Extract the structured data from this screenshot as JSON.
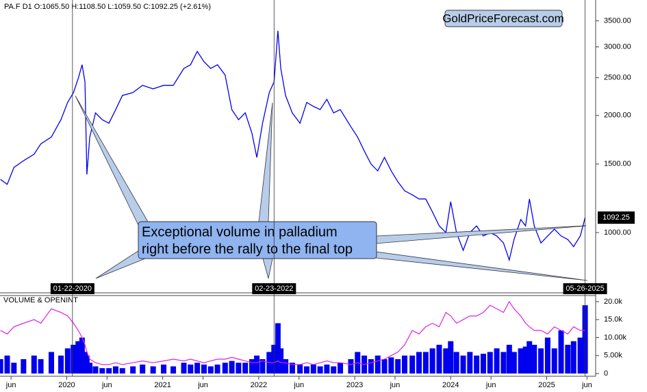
{
  "chart_data": [
    {
      "type": "line",
      "header": "PA.F  D1  O:1065.50  H:1108.50  L:1059.50  C:1092.25  (+2.61%)",
      "watermark": "GoldPriceForecast.com",
      "annotation": [
        "Exceptional volume in palladium",
        "right before the rally to the final top"
      ],
      "log_scale": true,
      "xlim": [
        2019.305,
        2025.51
      ],
      "ylim": [
        700,
        3960
      ],
      "yticks": [
        {
          "value": 1000,
          "label": "1000.00"
        },
        {
          "value": 1500,
          "label": "1500.00"
        },
        {
          "value": 2000,
          "label": "2000.00"
        },
        {
          "value": 2500,
          "label": "2500.00"
        },
        {
          "value": 3000,
          "label": "3000.00"
        },
        {
          "value": 3500,
          "label": "3500.00"
        }
      ],
      "last_value": 1092.25,
      "markers": [
        {
          "x": 2020.06,
          "label": "01-22-2020"
        },
        {
          "x": 2022.16,
          "label": "02-23-2022"
        },
        {
          "x": 2025.4,
          "label": "05-26-2025"
        }
      ],
      "x": [
        2019.31,
        2019.38,
        2019.45,
        2019.55,
        2019.66,
        2019.73,
        2019.84,
        2019.94,
        2020.01,
        2020.07,
        2020.12,
        2020.16,
        2020.19,
        2020.21,
        2020.24,
        2020.3,
        2020.37,
        2020.44,
        2020.51,
        2020.58,
        2020.69,
        2020.79,
        2020.9,
        2021.01,
        2021.11,
        2021.22,
        2021.29,
        2021.36,
        2021.43,
        2021.5,
        2021.57,
        2021.65,
        2021.72,
        2021.79,
        2021.86,
        2021.93,
        2021.98,
        2022.04,
        2022.11,
        2022.16,
        2022.2,
        2022.23,
        2022.28,
        2022.35,
        2022.43,
        2022.5,
        2022.57,
        2022.64,
        2022.71,
        2022.78,
        2022.85,
        2022.96,
        2023.03,
        2023.1,
        2023.17,
        2023.24,
        2023.31,
        2023.38,
        2023.45,
        2023.52,
        2023.6,
        2023.67,
        2023.74,
        2023.81,
        2023.88,
        2023.95,
        2024.0,
        2024.06,
        2024.13,
        2024.2,
        2024.27,
        2024.34,
        2024.41,
        2024.48,
        2024.55,
        2024.61,
        2024.66,
        2024.73,
        2024.78,
        2024.82,
        2024.87,
        2024.94,
        2025.01,
        2025.08,
        2025.15,
        2025.22,
        2025.28,
        2025.35,
        2025.4
      ],
      "series": [
        {
          "color": "#0000ee",
          "values": [
            1370,
            1330,
            1470,
            1530,
            1590,
            1690,
            1760,
            1950,
            2160,
            2290,
            2490,
            2700,
            2440,
            1410,
            1760,
            2030,
            1950,
            1910,
            2070,
            2250,
            2290,
            2390,
            2340,
            2390,
            2390,
            2640,
            2700,
            2920,
            2750,
            2640,
            2700,
            2540,
            2070,
            1950,
            2030,
            1800,
            1560,
            1910,
            2290,
            2440,
            3300,
            2640,
            2250,
            2030,
            1910,
            2160,
            2110,
            2070,
            2200,
            2030,
            2070,
            1870,
            1760,
            1620,
            1500,
            1440,
            1560,
            1440,
            1350,
            1280,
            1250,
            1220,
            1220,
            1130,
            1040,
            1000,
            1200,
            1000,
            900,
            1000,
            1040,
            980,
            1000,
            980,
            940,
            850,
            960,
            1080,
            1040,
            1220,
            1040,
            940,
            980,
            1020,
            980,
            960,
            920,
            980,
            1092.25
          ]
        }
      ]
    },
    {
      "type": "volume",
      "title": "VOLUME & OPENINT",
      "xlim": [
        2019.305,
        2025.51
      ],
      "xticks": [
        {
          "value": 2019.42,
          "label": "jun"
        },
        2020,
        {
          "value": 2020.42,
          "label": "jun"
        },
        2021,
        {
          "value": 2021.42,
          "label": "jun"
        },
        2022,
        {
          "value": 2022.42,
          "label": "jun"
        },
        2023,
        {
          "value": 2023.42,
          "label": "jun"
        },
        2024,
        {
          "value": 2024.42,
          "label": "jun"
        },
        2025,
        {
          "value": 2025.42,
          "label": "jun"
        }
      ],
      "ylim": [
        0,
        21700
      ],
      "yticks": [
        0,
        {
          "value": 5000,
          "label": "5.00k"
        },
        {
          "value": 10000,
          "label": "10.00k"
        },
        {
          "value": 15000,
          "label": "15.0k"
        },
        {
          "value": 20000,
          "label": "20.0k"
        }
      ],
      "x": [
        2019.31,
        2019.38,
        2019.45,
        2019.55,
        2019.66,
        2019.73,
        2019.84,
        2019.94,
        2020.01,
        2020.07,
        2020.12,
        2020.16,
        2020.19,
        2020.21,
        2020.24,
        2020.3,
        2020.37,
        2020.44,
        2020.51,
        2020.58,
        2020.69,
        2020.79,
        2020.9,
        2021.01,
        2021.11,
        2021.22,
        2021.29,
        2021.36,
        2021.43,
        2021.5,
        2021.57,
        2021.65,
        2021.72,
        2021.79,
        2021.86,
        2021.93,
        2021.98,
        2022.04,
        2022.11,
        2022.16,
        2022.2,
        2022.23,
        2022.28,
        2022.35,
        2022.43,
        2022.5,
        2022.57,
        2022.64,
        2022.71,
        2022.78,
        2022.85,
        2022.96,
        2023.03,
        2023.1,
        2023.17,
        2023.24,
        2023.31,
        2023.38,
        2023.45,
        2023.52,
        2023.6,
        2023.67,
        2023.74,
        2023.81,
        2023.88,
        2023.95,
        2024.0,
        2024.06,
        2024.13,
        2024.2,
        2024.27,
        2024.34,
        2024.41,
        2024.48,
        2024.55,
        2024.61,
        2024.66,
        2024.73,
        2024.78,
        2024.82,
        2024.87,
        2024.94,
        2025.01,
        2025.08,
        2025.15,
        2025.22,
        2025.28,
        2025.35,
        2025.4
      ],
      "series": [
        {
          "type": "bar",
          "color": "#0000ee",
          "values": [
            4000,
            5000,
            3000,
            4000,
            5000,
            4000,
            6000,
            5000,
            7000,
            8000,
            9000,
            10000,
            6000,
            5000,
            3000,
            2000,
            1500,
            1500,
            2000,
            1500,
            2000,
            2500,
            2000,
            2500,
            2000,
            3000,
            2500,
            3000,
            2500,
            2000,
            2500,
            3000,
            3500,
            3000,
            3000,
            4000,
            5000,
            4000,
            6000,
            8000,
            14000,
            7000,
            4000,
            3000,
            2500,
            2000,
            2500,
            2000,
            2500,
            2000,
            3000,
            4000,
            6000,
            5000,
            4000,
            5000,
            4000,
            4500,
            4000,
            5000,
            5000,
            6000,
            6000,
            7000,
            8000,
            7000,
            9000,
            6000,
            5000,
            6000,
            5000,
            5500,
            6000,
            7000,
            6000,
            8000,
            6000,
            7000,
            7500,
            9000,
            8000,
            7000,
            10000,
            7000,
            12000,
            8000,
            9000,
            10000,
            19000
          ]
        },
        {
          "type": "line",
          "color": "#e020e0",
          "values": [
            12000,
            11000,
            13000,
            14000,
            15000,
            14000,
            18000,
            17000,
            16000,
            14000,
            12000,
            10000,
            8000,
            6000,
            4000,
            3000,
            2500,
            2500,
            3000,
            2500,
            3000,
            3500,
            3000,
            3500,
            4000,
            3500,
            4000,
            3500,
            3000,
            3500,
            4000,
            4000,
            4500,
            4000,
            3500,
            3000,
            3000,
            3500,
            3000,
            3000,
            3500,
            3000,
            3000,
            2500,
            2500,
            3000,
            2500,
            3000,
            3500,
            3000,
            3000,
            2500,
            3000,
            2500,
            3000,
            3500,
            4000,
            5000,
            6000,
            8000,
            12000,
            11000,
            13000,
            14000,
            13000,
            17000,
            16000,
            14000,
            15000,
            16000,
            16000,
            17000,
            19000,
            18000,
            17000,
            20000,
            18000,
            16000,
            14000,
            13000,
            12000,
            12000,
            11000,
            13000,
            12000,
            11000,
            13000,
            12000,
            12000
          ]
        }
      ]
    }
  ]
}
